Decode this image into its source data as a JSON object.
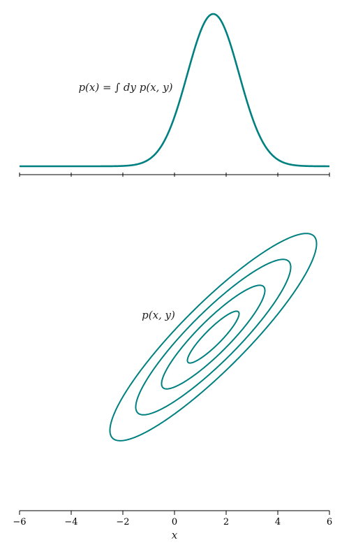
{
  "chart_data": [
    {
      "type": "line",
      "title": "",
      "annotation": "p(x) = ∫ dy p(x, y)",
      "x_range": [
        -6,
        6
      ],
      "x_ticks": [
        -6,
        -4,
        -2,
        0,
        2,
        4,
        6
      ],
      "tick_labels_shown": false,
      "series": [
        {
          "distribution": "normal",
          "mean": 1.5,
          "sd": 1.0,
          "color": "#008080"
        }
      ]
    },
    {
      "type": "contour",
      "title": "",
      "annotation": "p(x, y)",
      "xlabel": "x",
      "x_range": [
        -6,
        6
      ],
      "x_ticks": [
        -6,
        -4,
        -2,
        0,
        2,
        4,
        6
      ],
      "y_range": [
        -5.2,
        6.8
      ],
      "distribution": "bivariate-normal",
      "mean": [
        1.5,
        1.5
      ],
      "sd": [
        1.0,
        1.0
      ],
      "correlation": 0.9,
      "contour_levels_sigma": [
        1,
        2,
        3,
        4
      ],
      "color": "#008080"
    }
  ]
}
